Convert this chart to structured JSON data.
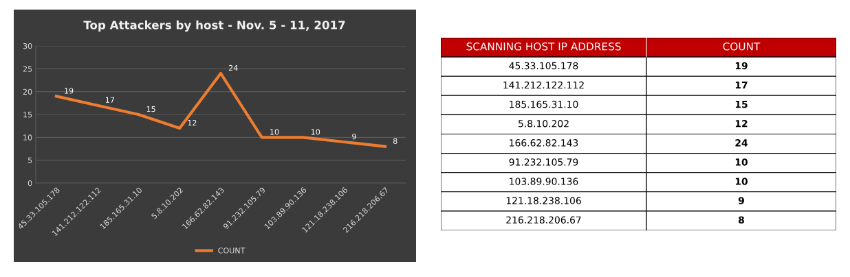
{
  "chart_data": [
    {
      "type": "line",
      "title": "Top Attackers by host - Nov. 5 - 11, 2017",
      "categories": [
        "45.33.105.178",
        "141.212.122.112",
        "185.165.31.10",
        "5.8.10.202",
        "166.62.82.143",
        "91.232.105.79",
        "103.89.90.136",
        "121.18.238.106",
        "216.218.206.67"
      ],
      "series": [
        {
          "name": "COUNT",
          "color": "#ed7d31",
          "values": [
            19,
            17,
            15,
            12,
            24,
            10,
            10,
            9,
            8
          ]
        }
      ],
      "ylim": [
        0,
        30
      ],
      "yticks": [
        0,
        5,
        10,
        15,
        20,
        25,
        30
      ],
      "grid": "y",
      "legend": "bottom",
      "marker": "none",
      "line_style": "solid",
      "data_labels": true
    },
    {
      "type": "other",
      "xlabel": "SCANNING HOST IP ADDRESS",
      "ylabel": "COUNT",
      "data_labels": true,
      "categories": [
        "45.33.105.178",
        "141.212.122.112",
        "185.165.31.10",
        "5.8.10.202",
        "166.62.82.143",
        "91.232.105.79",
        "103.89.90.136",
        "121.18.238.106",
        "216.218.206.67"
      ],
      "values": [
        19,
        17,
        15,
        12,
        24,
        10,
        10,
        9,
        8
      ]
    }
  ]
}
